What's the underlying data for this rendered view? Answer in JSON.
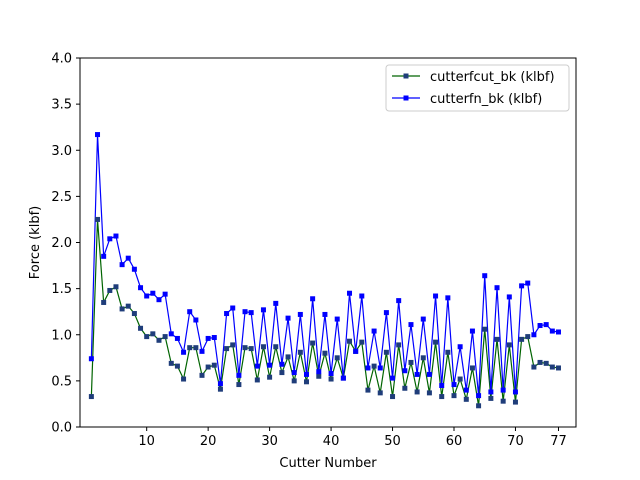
{
  "chart_data": {
    "type": "line",
    "xlabel": "Cutter Number",
    "ylabel": "Force (klbf)",
    "ylim": [
      0,
      4.0
    ],
    "xlim": [
      -0.85,
      79.85
    ],
    "x_ticks": [
      10,
      20,
      30,
      40,
      50,
      60,
      70,
      77
    ],
    "y_ticks": [
      0.0,
      0.5,
      1.0,
      1.5,
      2.0,
      2.5,
      3.0,
      3.5,
      4.0
    ],
    "y_tick_labels": [
      "0.0",
      "0.5",
      "1.0",
      "1.5",
      "2.0",
      "2.5",
      "3.0",
      "3.5",
      "4.0"
    ],
    "grid": false,
    "legend_position": "top-right",
    "x": [
      1,
      2,
      3,
      4,
      5,
      6,
      7,
      8,
      9,
      10,
      11,
      12,
      13,
      14,
      15,
      16,
      17,
      18,
      19,
      20,
      21,
      22,
      23,
      24,
      25,
      26,
      27,
      28,
      29,
      30,
      31,
      32,
      33,
      34,
      35,
      36,
      37,
      38,
      39,
      40,
      41,
      42,
      43,
      44,
      45,
      46,
      47,
      48,
      49,
      50,
      51,
      52,
      53,
      54,
      55,
      56,
      57,
      58,
      59,
      60,
      61,
      62,
      63,
      64,
      65,
      66,
      67,
      68,
      69,
      70,
      71,
      72,
      73,
      74,
      75,
      76,
      77
    ],
    "series": [
      {
        "name": "cutterfcut_bk (klbf)",
        "color": "#006400",
        "marker_color": "#1f3d7a",
        "values": [
          0.33,
          2.25,
          1.35,
          1.48,
          1.52,
          1.28,
          1.31,
          1.23,
          1.07,
          0.98,
          1.01,
          0.94,
          0.98,
          0.69,
          0.66,
          0.52,
          0.86,
          0.86,
          0.56,
          0.65,
          0.67,
          0.41,
          0.85,
          0.89,
          0.46,
          0.86,
          0.85,
          0.51,
          0.87,
          0.54,
          0.87,
          0.59,
          0.76,
          0.5,
          0.81,
          0.49,
          0.91,
          0.55,
          0.8,
          0.52,
          0.75,
          0.53,
          0.93,
          0.82,
          0.92,
          0.4,
          0.66,
          0.37,
          0.81,
          0.33,
          0.89,
          0.42,
          0.7,
          0.38,
          0.75,
          0.37,
          0.92,
          0.33,
          0.81,
          0.34,
          0.52,
          0.3,
          0.64,
          0.23,
          1.06,
          0.31,
          0.95,
          0.28,
          0.89,
          0.27,
          0.95,
          0.98,
          0.65,
          0.7,
          0.69,
          0.65,
          0.64
        ]
      },
      {
        "name": "cutterfn_bk (klbf)",
        "color": "#0000ff",
        "marker_color": "#0000ff",
        "values": [
          0.74,
          3.17,
          1.85,
          2.04,
          2.07,
          1.76,
          1.83,
          1.71,
          1.51,
          1.42,
          1.45,
          1.38,
          1.44,
          1.01,
          0.96,
          0.81,
          1.25,
          1.16,
          0.82,
          0.96,
          0.97,
          0.47,
          1.23,
          1.29,
          0.56,
          1.25,
          1.24,
          0.66,
          1.27,
          0.67,
          1.34,
          0.68,
          1.18,
          0.59,
          1.22,
          0.57,
          1.39,
          0.6,
          1.22,
          0.58,
          1.17,
          0.53,
          1.45,
          0.82,
          1.42,
          0.64,
          1.04,
          0.64,
          1.24,
          0.53,
          1.37,
          0.61,
          1.11,
          0.57,
          1.17,
          0.57,
          1.42,
          0.45,
          1.4,
          0.46,
          0.87,
          0.4,
          1.04,
          0.34,
          1.64,
          0.38,
          1.51,
          0.4,
          1.41,
          0.38,
          1.53,
          1.56,
          1.0,
          1.1,
          1.11,
          1.04,
          1.03
        ]
      }
    ]
  }
}
